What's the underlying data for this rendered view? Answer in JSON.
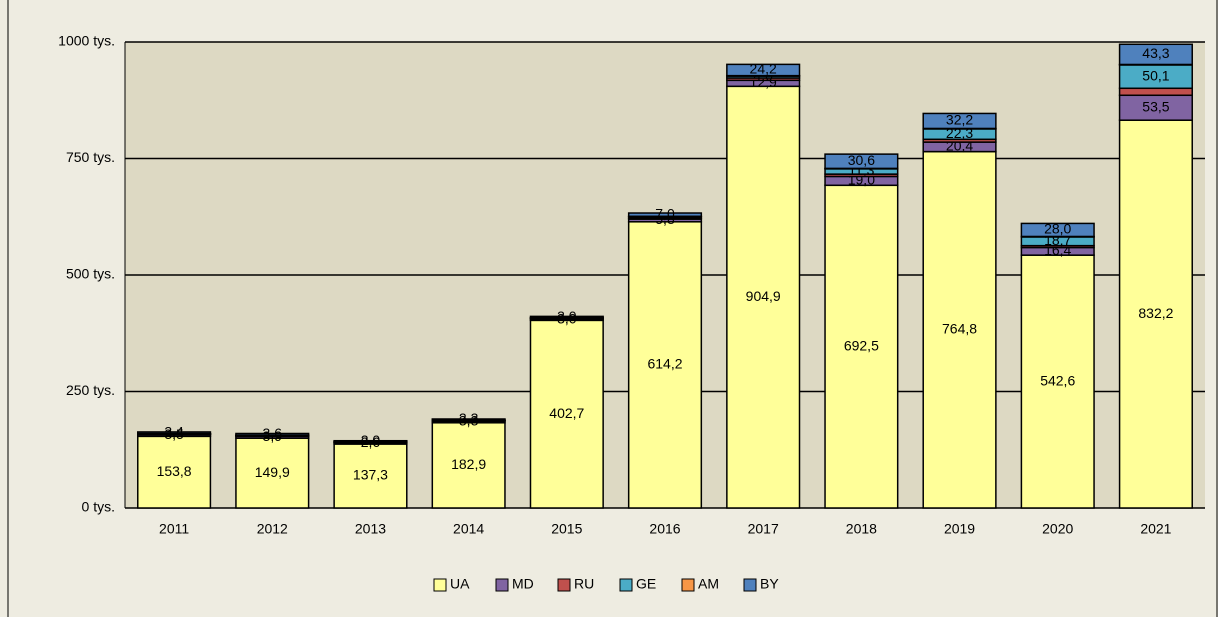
{
  "chart_data": {
    "type": "stacked-bar",
    "categories": [
      "2011",
      "2012",
      "2013",
      "2014",
      "2015",
      "2016",
      "2017",
      "2018",
      "2019",
      "2020",
      "2021"
    ],
    "series": [
      {
        "name": "UA",
        "color": "#ffff99",
        "values": [
          153.8,
          149.9,
          137.3,
          182.9,
          402.7,
          614.2,
          904.9,
          692.5,
          764.8,
          542.6,
          832.2
        ],
        "value_labels": [
          "153,8",
          "149,9",
          "137,3",
          "182,9",
          "402,7",
          "614,2",
          "904,9",
          "692,5",
          "764,8",
          "542,6",
          "832,2"
        ]
      },
      {
        "name": "MD",
        "color": "#8064a2",
        "values": [
          3.5,
          3.9,
          2.6,
          3.3,
          3.0,
          5.8,
          12.9,
          19.0,
          20.4,
          16.4,
          53.5
        ],
        "value_labels": [
          "3,5",
          "3,9",
          "2,6",
          "3,3",
          "3,0",
          "5,8",
          "12,9",
          "19,0",
          "20,4",
          "16,4",
          "53,5"
        ]
      },
      {
        "name": "RU",
        "color": "#c0504d",
        "values": [
          1,
          1,
          1,
          1,
          1,
          2,
          5,
          5,
          6,
          4,
          15
        ]
      },
      {
        "name": "GE",
        "color": "#4bacc6",
        "values": [
          1,
          1,
          1,
          1,
          1,
          3,
          4.0,
          11.3,
          22.3,
          18.7,
          50.1
        ],
        "value_labels": [
          null,
          null,
          null,
          null,
          null,
          null,
          "4,0",
          "11,3",
          "22,3",
          "18,7",
          "50,1"
        ]
      },
      {
        "name": "AM",
        "color": "#f79646",
        "values": [
          0.5,
          0.5,
          0.5,
          0.5,
          0.5,
          1,
          1,
          1,
          1,
          1,
          1
        ]
      },
      {
        "name": "BY",
        "color": "#4f81bd",
        "values": [
          3.4,
          3.6,
          2.0,
          2.3,
          3.0,
          7.0,
          24.2,
          30.6,
          32.2,
          28.0,
          43.3
        ],
        "value_labels": [
          "3,4",
          "3,6",
          "2,0",
          "2,3",
          "3,0",
          "7,0",
          "24,2",
          "30,6",
          "32,2",
          "28,0",
          "43,3"
        ]
      }
    ],
    "ylim": [
      0,
      1000
    ],
    "yticks": [
      {
        "value": 0,
        "label": "0 tys."
      },
      {
        "value": 250,
        "label": "250 tys."
      },
      {
        "value": 500,
        "label": "500 tys."
      },
      {
        "value": 750,
        "label": "750 tys."
      },
      {
        "value": 1000,
        "label": "1000 tys."
      }
    ],
    "grid": true,
    "legend": "bottom"
  }
}
